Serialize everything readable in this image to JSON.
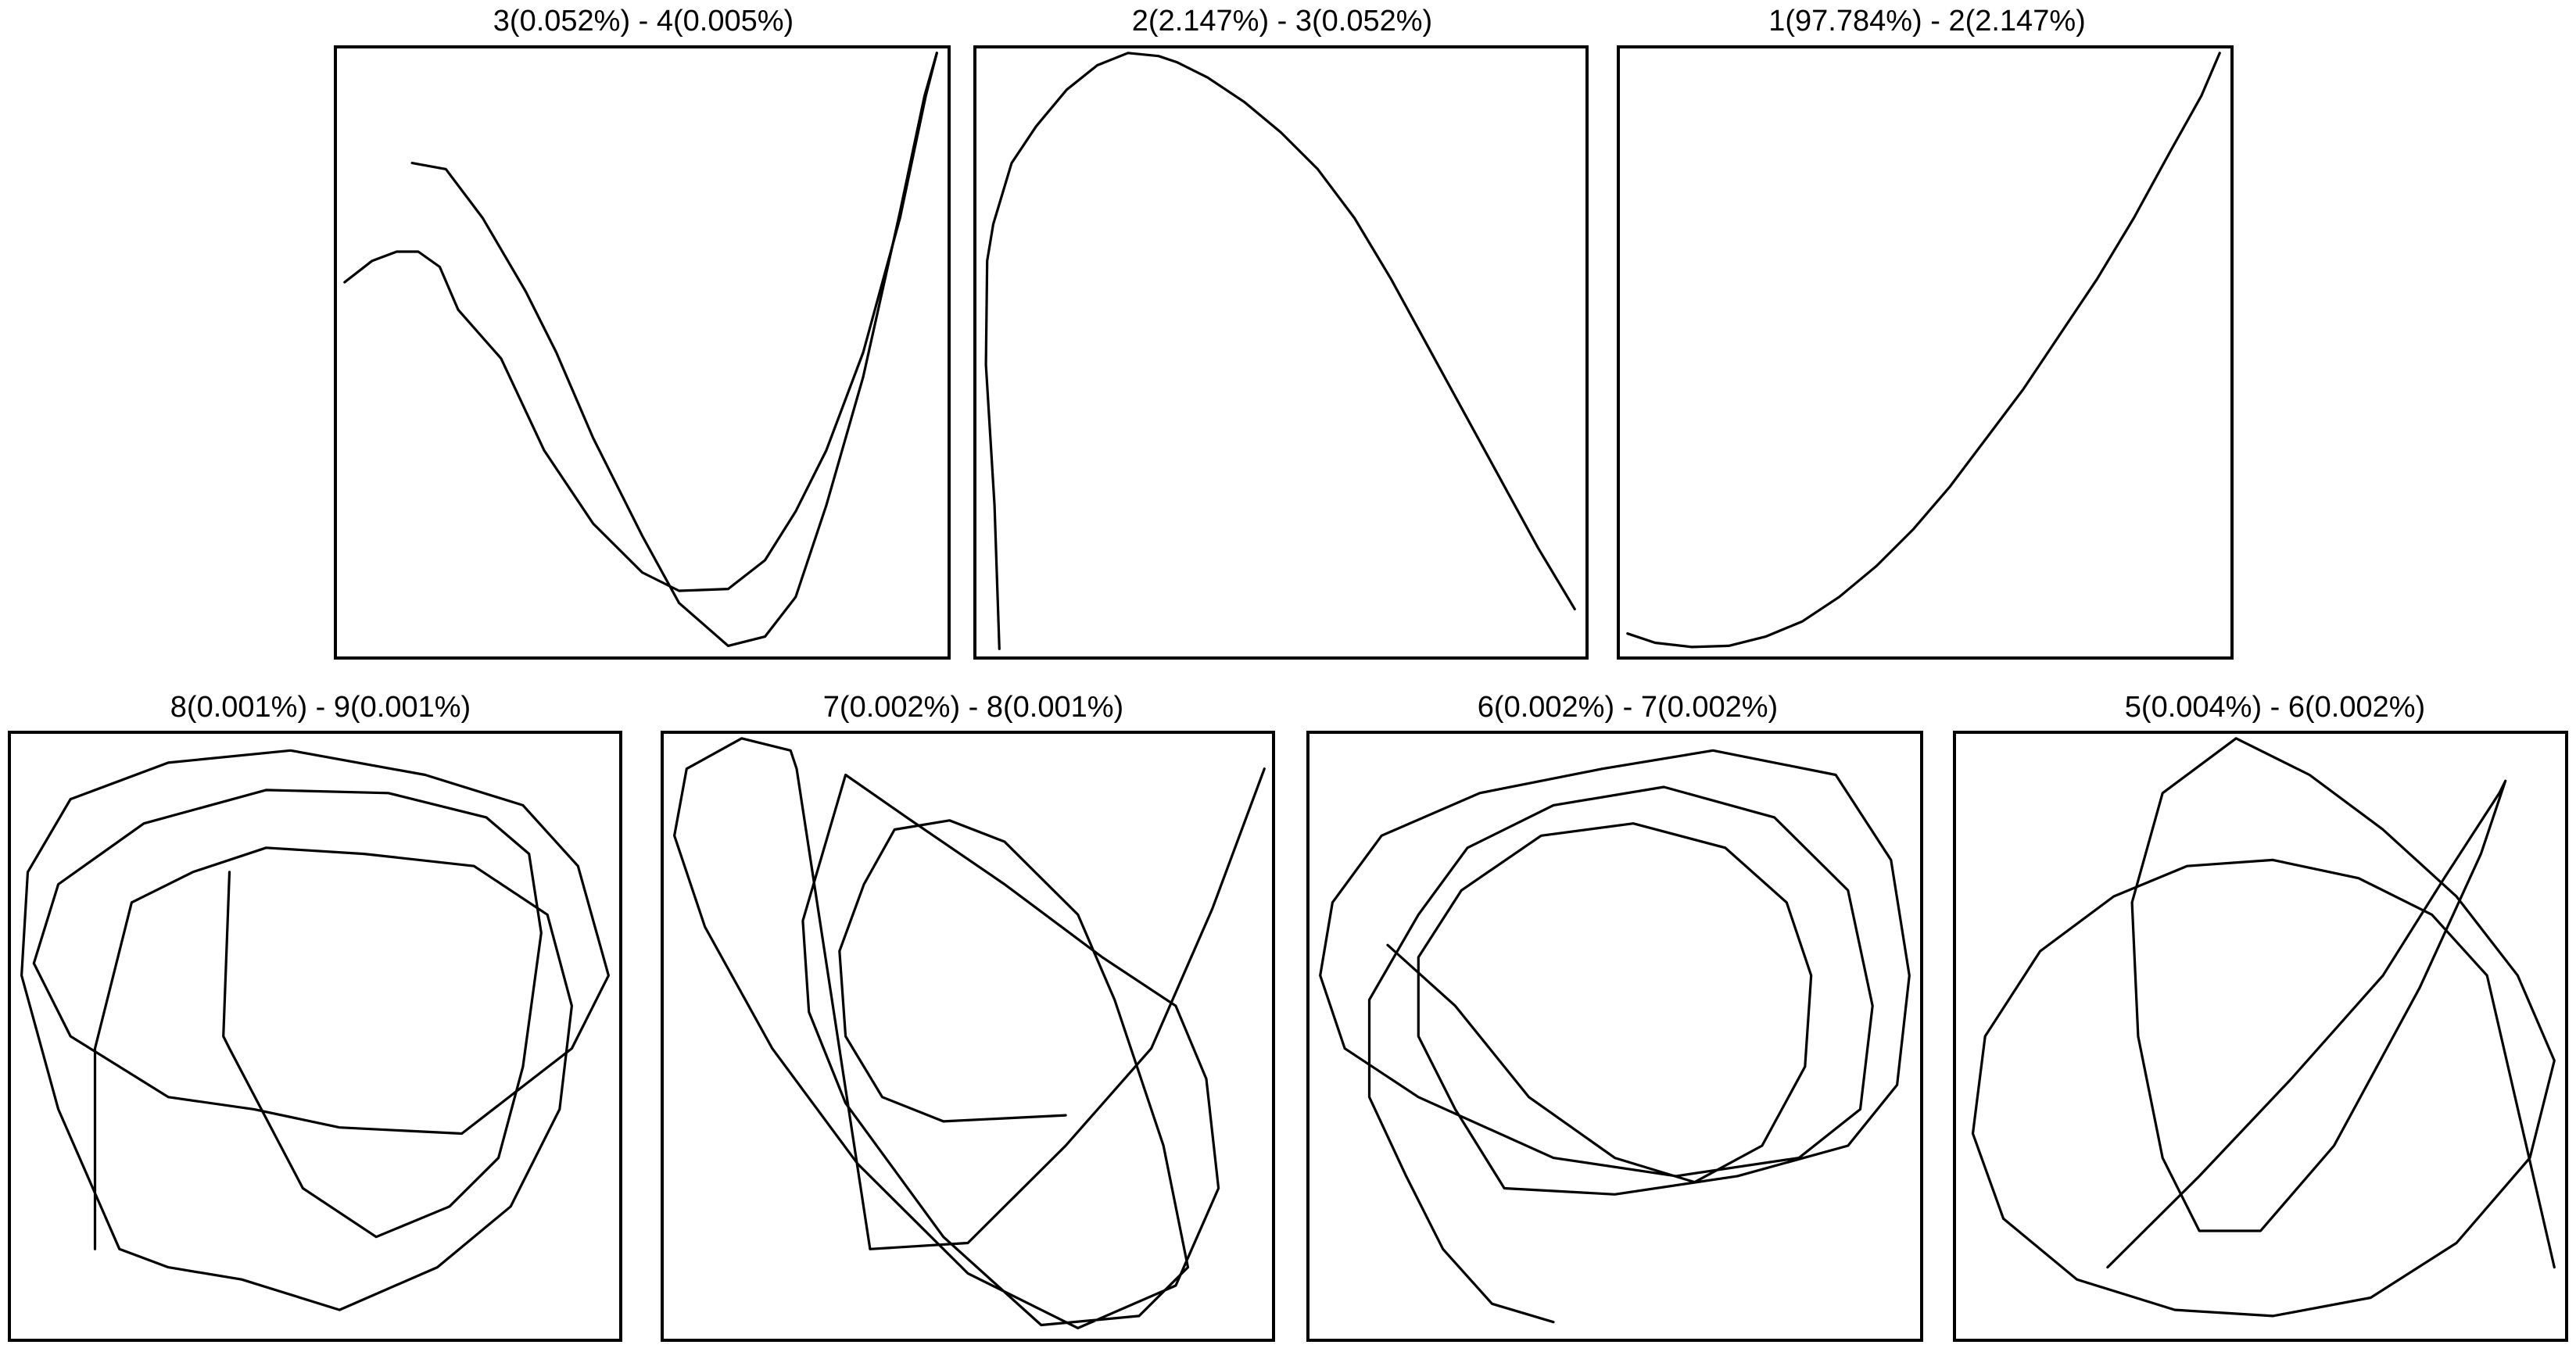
{
  "chart_data": [
    {
      "type": "line",
      "title": "3(0.052%) - 4(0.005%)",
      "xlim": [
        0,
        1
      ],
      "ylim": [
        0,
        1
      ],
      "grid": false,
      "axes": false,
      "series": [
        {
          "x": [
            0.015,
            0.06,
            0.1,
            0.135,
            0.17,
            0.2,
            0.27,
            0.34,
            0.42,
            0.5,
            0.56,
            0.64,
            0.7,
            0.75,
            0.8,
            0.86,
            0.92,
            0.962,
            0.98
          ],
          "y": [
            0.615,
            0.65,
            0.665,
            0.665,
            0.64,
            0.57,
            0.49,
            0.34,
            0.22,
            0.14,
            0.11,
            0.113,
            0.16,
            0.24,
            0.34,
            0.5,
            0.72,
            0.92,
            0.99
          ]
        },
        {
          "x": [
            0.125,
            0.18,
            0.24,
            0.31,
            0.36,
            0.42,
            0.5,
            0.56,
            0.64,
            0.7,
            0.75,
            0.8,
            0.86,
            0.92,
            0.96,
            0.98
          ],
          "y": [
            0.81,
            0.8,
            0.72,
            0.6,
            0.5,
            0.36,
            0.2,
            0.09,
            0.02,
            0.035,
            0.1,
            0.25,
            0.46,
            0.73,
            0.92,
            0.99
          ]
        }
      ]
    },
    {
      "type": "line",
      "title": "2(2.147%) - 3(0.052%)",
      "xlim": [
        0,
        1
      ],
      "ylim": [
        0,
        1
      ],
      "grid": false,
      "axes": false,
      "series": [
        {
          "x": [
            0.04,
            0.032,
            0.018,
            0.02,
            0.03,
            0.06,
            0.1,
            0.15,
            0.2,
            0.25,
            0.3,
            0.33,
            0.38,
            0.44,
            0.5,
            0.56,
            0.62,
            0.68,
            0.74,
            0.8,
            0.86,
            0.92,
            0.98
          ],
          "y": [
            0.015,
            0.25,
            0.48,
            0.65,
            0.71,
            0.81,
            0.87,
            0.93,
            0.97,
            0.99,
            0.985,
            0.975,
            0.95,
            0.91,
            0.86,
            0.8,
            0.72,
            0.62,
            0.51,
            0.4,
            0.29,
            0.18,
            0.08
          ]
        }
      ]
    },
    {
      "type": "line",
      "title": "1(97.784%) - 2(2.147%)",
      "xlim": [
        0,
        1
      ],
      "ylim": [
        0,
        1
      ],
      "grid": false,
      "axes": false,
      "series": [
        {
          "x": [
            0.015,
            0.06,
            0.12,
            0.18,
            0.24,
            0.3,
            0.36,
            0.42,
            0.48,
            0.54,
            0.6,
            0.66,
            0.72,
            0.78,
            0.84,
            0.9,
            0.95,
            0.98
          ],
          "y": [
            0.04,
            0.025,
            0.018,
            0.02,
            0.035,
            0.06,
            0.1,
            0.15,
            0.21,
            0.28,
            0.36,
            0.44,
            0.53,
            0.62,
            0.72,
            0.83,
            0.92,
            0.99
          ]
        }
      ]
    },
    {
      "type": "line",
      "title": "8(0.001%) - 9(0.001%)",
      "xlim": [
        0,
        1
      ],
      "ylim": [
        0,
        1
      ],
      "grid": false,
      "axes": false,
      "series": [
        {
          "x": [
            0.36,
            0.35,
            0.36,
            0.48,
            0.6,
            0.72,
            0.8,
            0.84,
            0.87,
            0.85,
            0.78,
            0.62,
            0.42,
            0.22,
            0.08,
            0.04,
            0.1,
            0.26,
            0.4,
            0.54,
            0.74,
            0.92,
            0.98,
            0.93,
            0.84,
            0.68,
            0.46,
            0.26,
            0.1,
            0.03,
            0.02,
            0.08,
            0.18,
            0.26,
            0.38,
            0.54,
            0.7,
            0.82,
            0.9,
            0.92,
            0.88,
            0.76,
            0.58,
            0.42,
            0.3,
            0.2,
            0.14,
            0.14
          ],
          "y": [
            0.77,
            0.5,
            0.48,
            0.25,
            0.17,
            0.22,
            0.3,
            0.45,
            0.67,
            0.8,
            0.86,
            0.9,
            0.905,
            0.85,
            0.75,
            0.62,
            0.5,
            0.4,
            0.38,
            0.35,
            0.34,
            0.48,
            0.6,
            0.78,
            0.88,
            0.93,
            0.97,
            0.95,
            0.89,
            0.77,
            0.6,
            0.38,
            0.15,
            0.12,
            0.1,
            0.05,
            0.12,
            0.22,
            0.38,
            0.55,
            0.7,
            0.78,
            0.8,
            0.81,
            0.77,
            0.72,
            0.48,
            0.15
          ]
        }
      ]
    },
    {
      "type": "line",
      "title": "7(0.002%) - 8(0.001%)",
      "xlim": [
        0,
        1
      ],
      "ylim": [
        0,
        1
      ],
      "grid": false,
      "axes": false,
      "series": [
        {
          "x": [
            0.66,
            0.46,
            0.36,
            0.3,
            0.29,
            0.33,
            0.38,
            0.47,
            0.56,
            0.68,
            0.74,
            0.82,
            0.86,
            0.78,
            0.62,
            0.46,
            0.3,
            0.24,
            0.23,
            0.3,
            0.4,
            0.56,
            0.72,
            0.84,
            0.89,
            0.91,
            0.84,
            0.68,
            0.5,
            0.32,
            0.18,
            0.07,
            0.02,
            0.04,
            0.13,
            0.21,
            0.22,
            0.34,
            0.5,
            0.66,
            0.8,
            0.9,
            0.985
          ],
          "y": [
            0.37,
            0.36,
            0.4,
            0.5,
            0.64,
            0.75,
            0.84,
            0.855,
            0.82,
            0.7,
            0.56,
            0.32,
            0.12,
            0.04,
            0.025,
            0.17,
            0.39,
            0.54,
            0.69,
            0.93,
            0.86,
            0.75,
            0.63,
            0.55,
            0.43,
            0.25,
            0.09,
            0.02,
            0.11,
            0.29,
            0.48,
            0.68,
            0.83,
            0.94,
            0.99,
            0.97,
            0.94,
            0.15,
            0.16,
            0.32,
            0.48,
            0.71,
            0.94
          ]
        }
      ]
    },
    {
      "type": "line",
      "title": "6(0.002%) - 7(0.002%)",
      "xlim": [
        0,
        1
      ],
      "ylim": [
        0,
        1
      ],
      "grid": false,
      "axes": false,
      "series": [
        {
          "x": [
            0.13,
            0.24,
            0.36,
            0.5,
            0.63,
            0.74,
            0.81,
            0.82,
            0.78,
            0.68,
            0.53,
            0.38,
            0.25,
            0.18,
            0.18,
            0.24,
            0.32,
            0.5,
            0.7,
            0.88,
            0.96,
            0.98,
            0.95,
            0.86,
            0.66,
            0.48,
            0.28,
            0.12,
            0.04,
            0.02,
            0.06,
            0.18,
            0.4,
            0.6,
            0.8,
            0.9,
            0.92,
            0.88,
            0.76,
            0.58,
            0.4,
            0.26,
            0.18,
            0.1,
            0.1,
            0.16,
            0.22,
            0.3,
            0.4
          ],
          "y": [
            0.65,
            0.55,
            0.4,
            0.3,
            0.26,
            0.32,
            0.45,
            0.6,
            0.72,
            0.81,
            0.85,
            0.83,
            0.74,
            0.63,
            0.5,
            0.38,
            0.25,
            0.24,
            0.27,
            0.32,
            0.42,
            0.6,
            0.79,
            0.93,
            0.97,
            0.94,
            0.9,
            0.83,
            0.72,
            0.6,
            0.48,
            0.4,
            0.3,
            0.27,
            0.3,
            0.38,
            0.55,
            0.74,
            0.86,
            0.91,
            0.88,
            0.81,
            0.7,
            0.56,
            0.4,
            0.27,
            0.15,
            0.06,
            0.03
          ]
        }
      ]
    },
    {
      "type": "line",
      "title": "5(0.004%) - 6(0.002%)",
      "xlim": [
        0,
        1
      ],
      "ylim": [
        0,
        1
      ],
      "grid": false,
      "axes": false,
      "series": [
        {
          "x": [
            0.25,
            0.4,
            0.55,
            0.7,
            0.8,
            0.89,
            0.9,
            0.86,
            0.76,
            0.62,
            0.5,
            0.4,
            0.34,
            0.3,
            0.29,
            0.34,
            0.46,
            0.58,
            0.7,
            0.82,
            0.92,
            0.98,
            0.94,
            0.82,
            0.68,
            0.52,
            0.36,
            0.2,
            0.08,
            0.03,
            0.05,
            0.14,
            0.26,
            0.38,
            0.52,
            0.66,
            0.78,
            0.87,
            0.98
          ],
          "y": [
            0.12,
            0.27,
            0.43,
            0.6,
            0.76,
            0.9,
            0.92,
            0.8,
            0.58,
            0.32,
            0.18,
            0.18,
            0.3,
            0.5,
            0.72,
            0.9,
            0.99,
            0.93,
            0.84,
            0.73,
            0.6,
            0.46,
            0.3,
            0.16,
            0.07,
            0.04,
            0.05,
            0.1,
            0.2,
            0.34,
            0.5,
            0.64,
            0.73,
            0.78,
            0.79,
            0.76,
            0.7,
            0.6,
            0.12
          ]
        }
      ]
    }
  ]
}
